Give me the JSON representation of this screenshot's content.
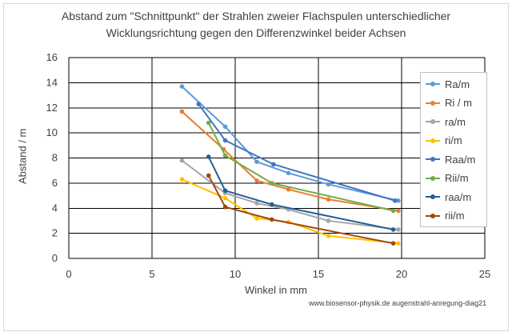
{
  "chart_data": {
    "type": "line",
    "title_line1": "Abstand zum \"Schnittpunkt\" der Strahlen zweier Flachspulen unterschiedlicher",
    "title_line2": "Wicklungsrichtung gegen den Differenzwinkel beider Achsen",
    "xlabel": "Winkel in mm",
    "ylabel": "Abstand / m",
    "xlim": [
      0,
      25
    ],
    "ylim": [
      0,
      16
    ],
    "x_ticks": [
      0,
      5,
      10,
      15,
      20,
      25
    ],
    "y_ticks": [
      0,
      2,
      4,
      6,
      8,
      10,
      12,
      14,
      16
    ],
    "grid": true,
    "legend_position": "right",
    "source_text": "www.biosensor-physik.de augenstrahl-anregung-diag21",
    "series": [
      {
        "name": "Ra/m",
        "color": "#5b9bd5",
        "x": [
          6.8,
          9.4,
          11.3,
          13.2,
          15.6,
          19.8
        ],
        "values": [
          13.7,
          10.5,
          7.7,
          6.8,
          5.9,
          4.6
        ]
      },
      {
        "name": "Ri / m",
        "color": "#ed7d31",
        "x": [
          6.8,
          9.3,
          11.3,
          13.2,
          15.6,
          19.8
        ],
        "values": [
          11.7,
          8.7,
          6.2,
          5.5,
          4.7,
          3.8
        ]
      },
      {
        "name": "ra/m",
        "color": "#a5a5a5",
        "x": [
          6.8,
          9.4,
          11.3,
          13.2,
          15.6,
          19.8
        ],
        "values": [
          7.8,
          5.2,
          4.4,
          3.9,
          3.0,
          2.3
        ]
      },
      {
        "name": "ri/m",
        "color": "#ffc000",
        "x": [
          6.8,
          9.4,
          11.3,
          13.2,
          15.6,
          19.8
        ],
        "values": [
          6.3,
          4.8,
          3.2,
          2.9,
          1.8,
          1.2
        ]
      },
      {
        "name": "Raa/m",
        "color": "#4472c4",
        "x": [
          7.8,
          9.4,
          12.3,
          19.6
        ],
        "values": [
          12.3,
          9.4,
          7.5,
          4.6
        ]
      },
      {
        "name": "Rii/m",
        "color": "#70ad47",
        "x": [
          8.4,
          9.4,
          12.2,
          19.5
        ],
        "values": [
          10.8,
          8.2,
          6.0,
          3.8
        ]
      },
      {
        "name": "raa/m",
        "color": "#255e91",
        "x": [
          8.4,
          9.4,
          12.2,
          19.5
        ],
        "values": [
          8.1,
          5.4,
          4.3,
          2.3
        ]
      },
      {
        "name": "rii/m",
        "color": "#9e480e",
        "x": [
          8.4,
          9.4,
          12.2,
          19.5
        ],
        "values": [
          6.6,
          4.1,
          3.1,
          1.2
        ]
      }
    ]
  }
}
